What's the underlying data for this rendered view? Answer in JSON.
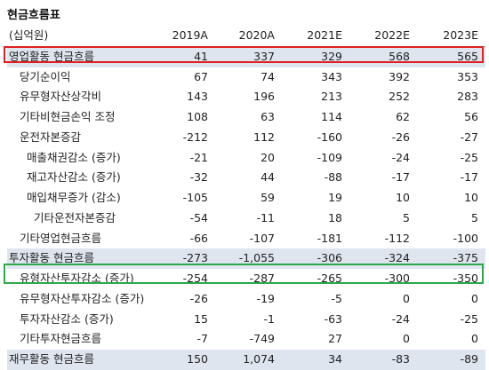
{
  "title": "현금흐름표",
  "unit": "(십억원)",
  "years": [
    "2019A",
    "2020A",
    "2021E",
    "2022E",
    "2023E"
  ],
  "rows": [
    {
      "label": "영업활동 현금흐름",
      "level": 0,
      "shaded": true,
      "values": [
        "41",
        "337",
        "329",
        "568",
        "565"
      ]
    },
    {
      "label": "당기순이익",
      "level": 1,
      "shaded": false,
      "values": [
        "67",
        "74",
        "343",
        "392",
        "353"
      ]
    },
    {
      "label": "유무형자산상각비",
      "level": 1,
      "shaded": false,
      "values": [
        "143",
        "196",
        "213",
        "252",
        "283"
      ]
    },
    {
      "label": "기타비현금손익 조정",
      "level": 1,
      "shaded": false,
      "values": [
        "108",
        "63",
        "114",
        "62",
        "56"
      ]
    },
    {
      "label": "운전자본증감",
      "level": 1,
      "shaded": false,
      "values": [
        "-212",
        "112",
        "-160",
        "-26",
        "-27"
      ]
    },
    {
      "label": "매출채권감소 (증가)",
      "level": 2,
      "shaded": false,
      "values": [
        "-21",
        "20",
        "-109",
        "-24",
        "-25"
      ]
    },
    {
      "label": "재고자산감소 (증가)",
      "level": 2,
      "shaded": false,
      "values": [
        "-32",
        "44",
        "-88",
        "-17",
        "-17"
      ]
    },
    {
      "label": "매입채무증가 (감소)",
      "level": 2,
      "shaded": false,
      "values": [
        "-105",
        "59",
        "19",
        "10",
        "10"
      ]
    },
    {
      "label": "기타운전자본증감",
      "level": 3,
      "shaded": false,
      "values": [
        "-54",
        "-11",
        "18",
        "5",
        "5"
      ]
    },
    {
      "label": "기타영업현금흐름",
      "level": 1,
      "shaded": false,
      "values": [
        "-66",
        "-107",
        "-181",
        "-112",
        "-100"
      ]
    },
    {
      "label": "투자활동 현금흐름",
      "level": 0,
      "shaded": true,
      "values": [
        "-273",
        "-1,055",
        "-306",
        "-324",
        "-375"
      ]
    },
    {
      "label": "유형자산투자감소 (증가)",
      "level": 1,
      "shaded": false,
      "values": [
        "-254",
        "-287",
        "-265",
        "-300",
        "-350"
      ]
    },
    {
      "label": "유무형자산투자감소 (증가)",
      "level": 1,
      "shaded": false,
      "values": [
        "-26",
        "-19",
        "-5",
        "0",
        "0"
      ]
    },
    {
      "label": "투자자산감소 (증가)",
      "level": 1,
      "shaded": false,
      "values": [
        "15",
        "-1",
        "-63",
        "-24",
        "-25"
      ]
    },
    {
      "label": "기타투자현금흐름",
      "level": 1,
      "shaded": false,
      "values": [
        "-7",
        "-749",
        "27",
        "0",
        "0"
      ]
    },
    {
      "label": "재무활동 현금흐름",
      "level": 0,
      "shaded": true,
      "values": [
        "150",
        "1,074",
        "34",
        "-83",
        "-89"
      ]
    }
  ]
}
